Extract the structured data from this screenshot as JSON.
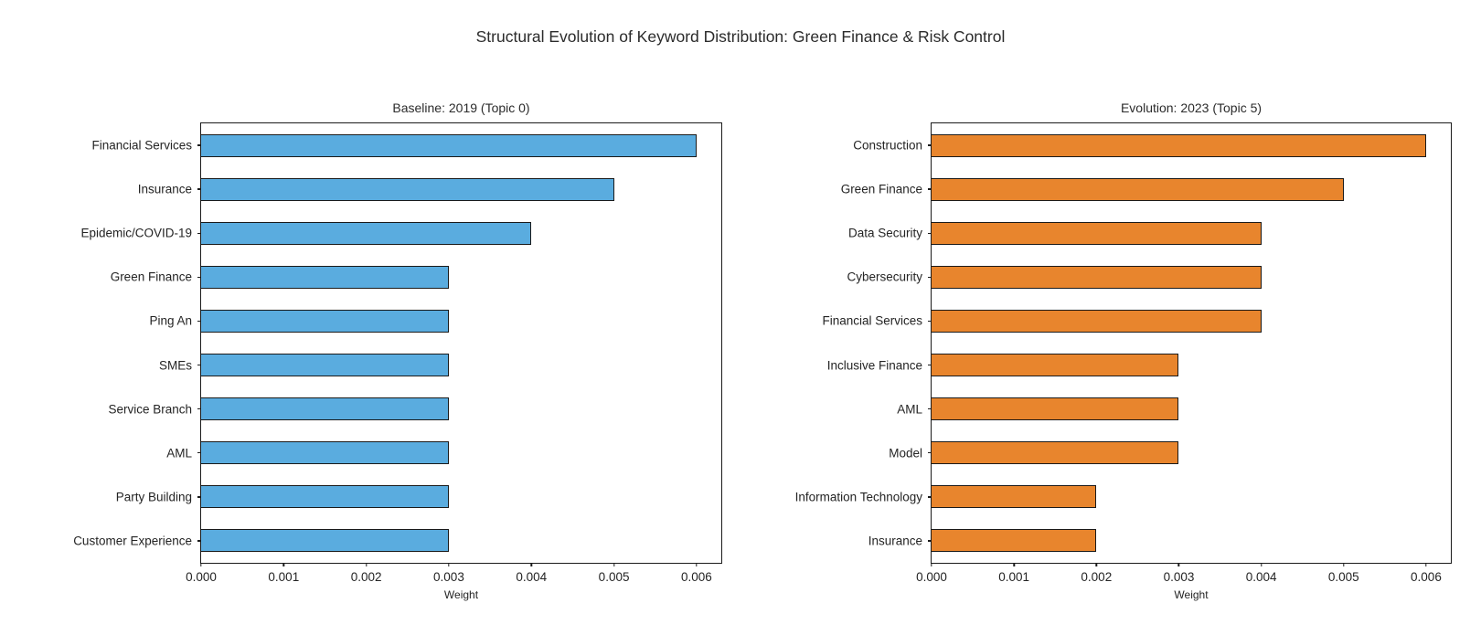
{
  "page": {
    "title": "Structural Evolution of Keyword Distribution: Green Finance & Risk Control"
  },
  "chart_data": [
    {
      "type": "bar",
      "orientation": "horizontal",
      "title": "Baseline: 2019 (Topic 0)",
      "categories": [
        "Financial Services",
        "Insurance",
        "Epidemic/COVID-19",
        "Green Finance",
        "Ping An",
        "SMEs",
        "Service Branch",
        "AML",
        "Party Building",
        "Customer Experience"
      ],
      "values": [
        0.006,
        0.005,
        0.004,
        0.003,
        0.003,
        0.003,
        0.003,
        0.003,
        0.003,
        0.003
      ],
      "xlabel": "Weight",
      "xlim": [
        0,
        0.0063
      ],
      "xticks": [
        "0.000",
        "0.001",
        "0.002",
        "0.003",
        "0.004",
        "0.005",
        "0.006"
      ],
      "grid": false,
      "legend": null,
      "bar_color": "#5AACDF",
      "bar_edge_color": "#1a1a1a"
    },
    {
      "type": "bar",
      "orientation": "horizontal",
      "title": "Evolution: 2023 (Topic 5)",
      "categories": [
        "Construction",
        "Green Finance",
        "Data Security",
        "Cybersecurity",
        "Financial Services",
        "Inclusive Finance",
        "AML",
        "Model",
        "Information Technology",
        "Insurance"
      ],
      "values": [
        0.006,
        0.005,
        0.004,
        0.004,
        0.004,
        0.003,
        0.003,
        0.003,
        0.002,
        0.002
      ],
      "xlabel": "Weight",
      "xlim": [
        0,
        0.0063
      ],
      "xticks": [
        "0.000",
        "0.001",
        "0.002",
        "0.003",
        "0.004",
        "0.005",
        "0.006"
      ],
      "grid": false,
      "legend": null,
      "bar_color": "#E8852D",
      "bar_edge_color": "#1a1a1a"
    }
  ]
}
